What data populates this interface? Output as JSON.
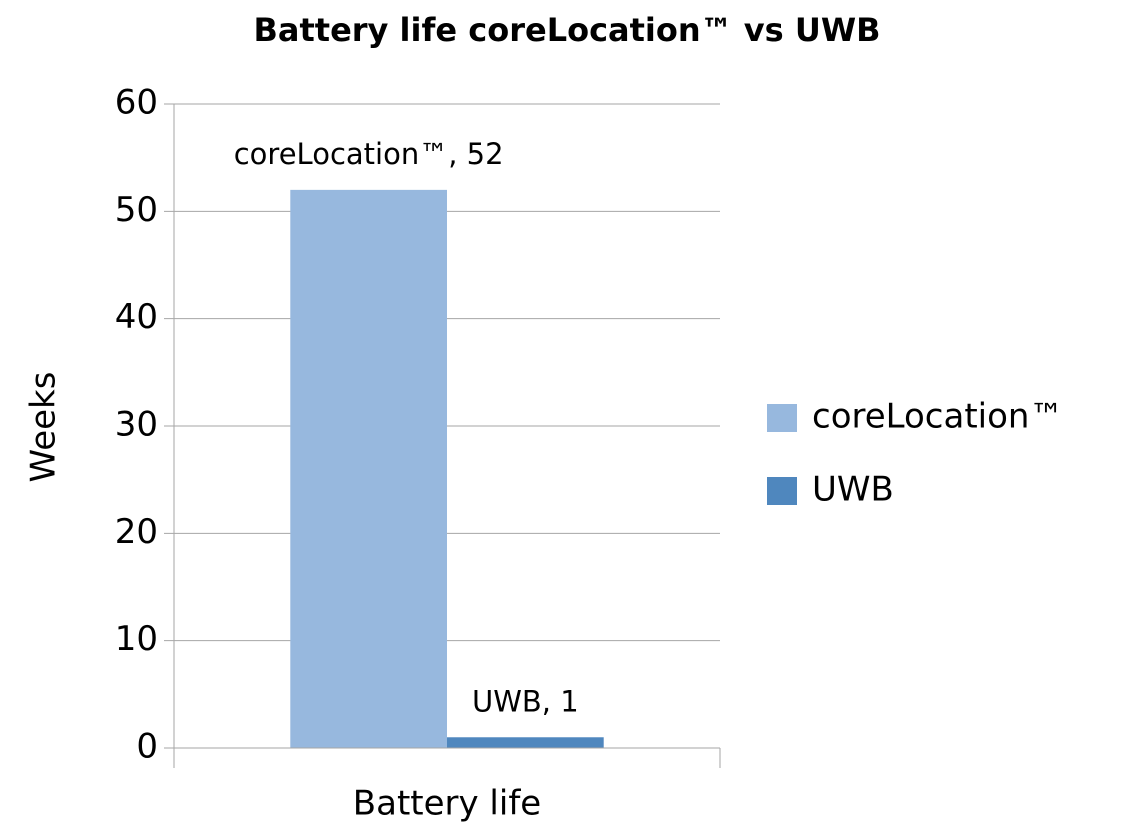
{
  "chart_data": {
    "type": "bar",
    "title": "Battery life coreLocation™ vs UWB",
    "y_label": "Weeks",
    "categories": [
      "Battery life"
    ],
    "series": [
      {
        "name": "coreLocation™",
        "color": "#97b8de",
        "values": [
          52
        ],
        "value_labels": [
          "coreLocation™, 52"
        ]
      },
      {
        "name": "UWB",
        "color": "#4f87be",
        "values": [
          1
        ],
        "value_labels": [
          "UWB, 1"
        ]
      }
    ],
    "ylim": [
      0,
      60
    ],
    "yticks": [
      0,
      10,
      20,
      30,
      40,
      50,
      60
    ],
    "grid": true,
    "legend": "right"
  }
}
